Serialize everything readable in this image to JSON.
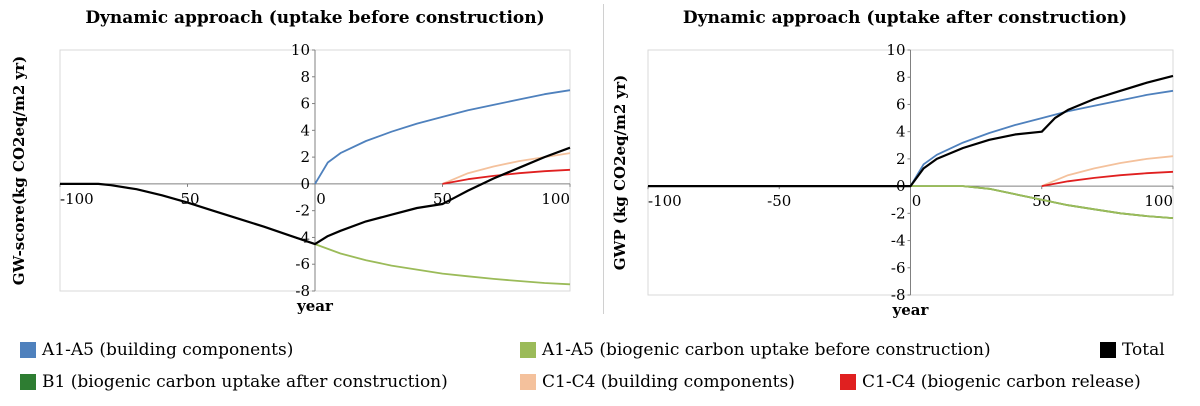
{
  "colors": {
    "a1a5_building": "#4f81bd",
    "a1a5_biogenic_before": "#9bbb59",
    "total": "#000000",
    "b1_biogenic_after": "#2e7d32",
    "c1c4_building": "#f4c19c",
    "c1c4_biogenic_release": "#e02020"
  },
  "legend": [
    {
      "key": "a1a5_building",
      "label": "A1-A5 (building components)"
    },
    {
      "key": "a1a5_biogenic_before",
      "label": "A1-A5 (biogenic carbon uptake before construction)"
    },
    {
      "key": "total",
      "label": "Total"
    },
    {
      "key": "b1_biogenic_after",
      "label": "B1 (biogenic carbon uptake after construction)"
    },
    {
      "key": "c1c4_building",
      "label": "C1-C4 (building components)"
    },
    {
      "key": "c1c4_biogenic_release",
      "label": "C1-C4 (biogenic carbon release)"
    }
  ],
  "chart_data": [
    {
      "type": "line",
      "title": "Dynamic approach (uptake before construction)",
      "xlabel": "year",
      "ylabel": "GW-score(kg CO2eq/m2 yr)",
      "xlim": [
        -100,
        100
      ],
      "ylim": [
        -8,
        10
      ],
      "xticks": [
        "-100",
        "-50",
        "0",
        "50",
        "100"
      ],
      "yticks": [
        "-8",
        "-6",
        "-4",
        "-2",
        "0",
        "2",
        "4",
        "6",
        "8",
        "10"
      ],
      "series": [
        {
          "key": "a1a5_building",
          "x": [
            0,
            5,
            10,
            20,
            30,
            40,
            50,
            60,
            70,
            80,
            90,
            100
          ],
          "y": [
            0,
            1.6,
            2.3,
            3.2,
            3.9,
            4.5,
            5.0,
            5.5,
            5.9,
            6.3,
            6.7,
            7.0
          ]
        },
        {
          "key": "a1a5_biogenic_before",
          "x": [
            0,
            10,
            20,
            30,
            40,
            50,
            60,
            70,
            80,
            90,
            100
          ],
          "y": [
            -4.5,
            -5.2,
            -5.7,
            -6.1,
            -6.4,
            -6.7,
            -6.9,
            -7.1,
            -7.25,
            -7.4,
            -7.5
          ]
        },
        {
          "key": "c1c4_building",
          "x": [
            50,
            60,
            70,
            80,
            90,
            100
          ],
          "y": [
            0,
            0.8,
            1.3,
            1.7,
            2.0,
            2.3
          ]
        },
        {
          "key": "c1c4_biogenic_release",
          "x": [
            50,
            60,
            70,
            80,
            90,
            100
          ],
          "y": [
            0,
            0.35,
            0.6,
            0.8,
            0.95,
            1.05
          ]
        },
        {
          "key": "total",
          "x": [
            -100,
            -90,
            -85,
            -80,
            -70,
            -60,
            -50,
            -40,
            -30,
            -20,
            -10,
            0,
            5,
            10,
            20,
            30,
            40,
            50,
            55,
            60,
            70,
            80,
            90,
            100
          ],
          "y": [
            0,
            0,
            0,
            -0.1,
            -0.4,
            -0.85,
            -1.4,
            -2.0,
            -2.6,
            -3.2,
            -3.85,
            -4.5,
            -3.9,
            -3.5,
            -2.8,
            -2.3,
            -1.8,
            -1.5,
            -1.0,
            -0.5,
            0.4,
            1.2,
            2.0,
            2.7
          ]
        }
      ]
    },
    {
      "type": "line",
      "title": "Dynamic approach (uptake after construction)",
      "xlabel": "year",
      "ylabel": "GWP (kg CO2eq/m2 yr)",
      "xlim": [
        -100,
        100
      ],
      "ylim": [
        -8,
        10
      ],
      "xticks": [
        "-100",
        "-50",
        "0",
        "50",
        "100"
      ],
      "yticks": [
        "-8",
        "-6",
        "-4",
        "-2",
        "0",
        "2",
        "4",
        "6",
        "8",
        "10"
      ],
      "series": [
        {
          "key": "a1a5_building",
          "x": [
            0,
            5,
            10,
            20,
            30,
            40,
            50,
            60,
            70,
            80,
            90,
            100
          ],
          "y": [
            0,
            1.6,
            2.3,
            3.2,
            3.9,
            4.5,
            5.0,
            5.5,
            5.9,
            6.3,
            6.7,
            7.0
          ]
        },
        {
          "key": "b1_biogenic_after",
          "x": [
            0,
            20,
            30,
            40,
            50,
            60,
            70,
            80,
            90,
            100
          ],
          "y": [
            0,
            0,
            -0.2,
            -0.6,
            -1.0,
            -1.4,
            -1.7,
            -2.0,
            -2.2,
            -2.35
          ]
        },
        {
          "key": "a1a5_biogenic_before",
          "x": [
            0,
            20,
            30,
            40,
            50,
            60,
            70,
            80,
            90,
            100
          ],
          "y": [
            0,
            0,
            -0.2,
            -0.6,
            -1.0,
            -1.4,
            -1.7,
            -2.0,
            -2.2,
            -2.35
          ]
        },
        {
          "key": "c1c4_building",
          "x": [
            50,
            60,
            70,
            80,
            90,
            100
          ],
          "y": [
            0,
            0.8,
            1.3,
            1.7,
            2.0,
            2.2
          ]
        },
        {
          "key": "c1c4_biogenic_release",
          "x": [
            50,
            60,
            70,
            80,
            90,
            100
          ],
          "y": [
            0,
            0.35,
            0.6,
            0.8,
            0.95,
            1.05
          ]
        },
        {
          "key": "total",
          "x": [
            -100,
            0,
            5,
            10,
            20,
            30,
            40,
            50,
            55,
            60,
            70,
            80,
            90,
            100
          ],
          "y": [
            0,
            0,
            1.3,
            2.0,
            2.8,
            3.4,
            3.8,
            4.0,
            5.0,
            5.6,
            6.4,
            7.0,
            7.6,
            8.1
          ]
        }
      ]
    }
  ]
}
